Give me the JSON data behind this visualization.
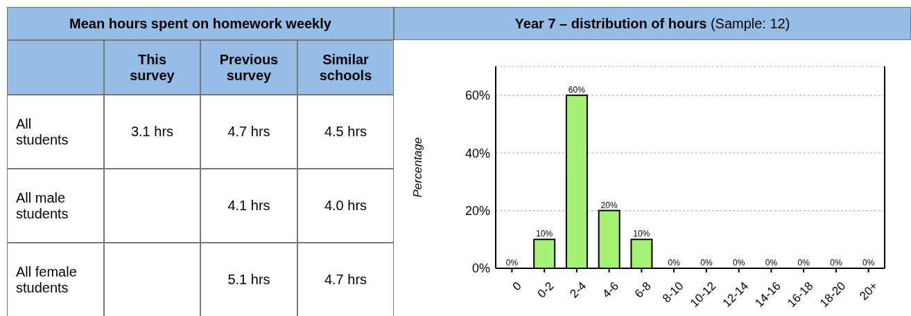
{
  "chart_data": [
    {
      "type": "other",
      "title": "Mean hours spent on homework weekly",
      "categories": [
        "This survey",
        "Previous survey",
        "Similar schools"
      ],
      "y_categories": [
        "All students",
        "All male students",
        "All female students"
      ],
      "cell_labels": [
        [
          "3.1 hrs",
          "4.7 hrs",
          "4.5 hrs"
        ],
        [
          null,
          "4.1 hrs",
          "4.0 hrs"
        ],
        [
          null,
          "5.1 hrs",
          "4.7 hrs"
        ]
      ]
    },
    {
      "type": "bar",
      "title": "Year 7 – distribution of hours",
      "subtitle": "(Sample: 12)",
      "ylabel": "Percentage",
      "categories": [
        "0",
        "0-2",
        "2-4",
        "4-6",
        "6-8",
        "8-10",
        "10-12",
        "12-14",
        "14-16",
        "16-18",
        "18-20",
        "20+"
      ],
      "values": [
        0,
        10,
        60,
        20,
        10,
        0,
        0,
        0,
        0,
        0,
        0,
        0
      ],
      "value_labels": [
        "0%",
        "10%",
        "60%",
        "20%",
        "10%",
        "0%",
        "0%",
        "0%",
        "0%",
        "0%",
        "0%",
        "0%"
      ],
      "color": "#a6f076",
      "ylim": [
        0,
        70
      ],
      "yticks": [
        {
          "value": 0,
          "label": "0%"
        },
        {
          "value": 20,
          "label": "20%"
        },
        {
          "value": 40,
          "label": "40%"
        },
        {
          "value": 60,
          "label": "60%"
        }
      ],
      "grid": "y"
    }
  ]
}
